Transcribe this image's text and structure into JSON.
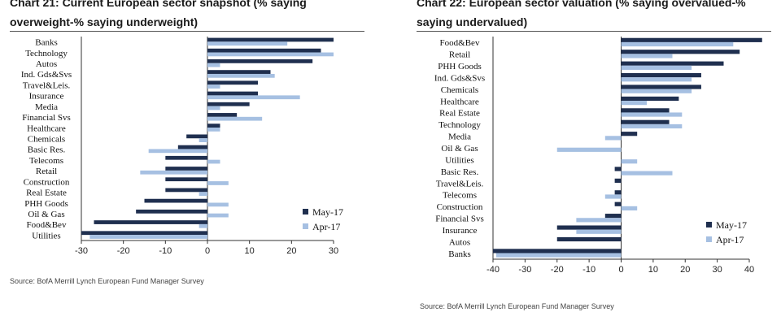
{
  "chart_data": [
    {
      "type": "bar",
      "orientation": "horizontal",
      "title": "Chart 21: Current European sector snapshot (% saying overweight-% saying underweight)",
      "source": "Source: BofA Merrill Lynch European Fund Manager Survey",
      "categories": [
        "Banks",
        "Technology",
        "Autos",
        "Ind. Gds&Svs",
        "Travel&Leis.",
        "Insurance",
        "Media",
        "Financial Svs",
        "Healthcare",
        "Chemicals",
        "Basic Res.",
        "Telecoms",
        "Retail",
        "Construction",
        "Real Estate",
        "PHH Goods",
        "Oil & Gas",
        "Food&Bev",
        "Utilities"
      ],
      "series": [
        {
          "name": "May-17",
          "color": "#1f2f4f",
          "values": [
            30,
            27,
            25,
            15,
            12,
            12,
            10,
            7,
            3,
            -5,
            -7,
            -10,
            -10,
            -10,
            -10,
            -15,
            -17,
            -27,
            -30
          ]
        },
        {
          "name": "Apr-17",
          "color": "#a6c0e2",
          "values": [
            19,
            30,
            3,
            16,
            3,
            22,
            3,
            13,
            3,
            -2,
            -14,
            3,
            -16,
            5,
            -2,
            5,
            5,
            -2,
            -28
          ]
        }
      ],
      "xlim": [
        -30,
        30
      ],
      "xticks": [
        -30,
        -20,
        -10,
        0,
        10,
        20,
        30
      ],
      "legend": "bottom-right"
    },
    {
      "type": "bar",
      "orientation": "horizontal",
      "title": "Chart 22: European sector valuation (% saying overvalued-% saying undervalued)",
      "source": "Source: BofA Merrill Lynch European Fund Manager Survey",
      "categories": [
        "Food&Bev",
        "Retail",
        "PHH Goods",
        "Ind. Gds&Svs",
        "Chemicals",
        "Healthcare",
        "Real Estate",
        "Technology",
        "Media",
        "Oil & Gas",
        "Utilities",
        "Basic Res.",
        "Travel&Leis.",
        "Telecoms",
        "Construction",
        "Financial Svs",
        "Insurance",
        "Autos",
        "Banks"
      ],
      "series": [
        {
          "name": "May-17",
          "color": "#1f2f4f",
          "values": [
            44,
            37,
            32,
            25,
            25,
            18,
            15,
            15,
            5,
            0,
            0,
            -2,
            -2,
            -2,
            -2,
            -5,
            -20,
            -20,
            -40
          ]
        },
        {
          "name": "Apr-17",
          "color": "#a6c0e2",
          "values": [
            35,
            16,
            22,
            22,
            22,
            8,
            19,
            19,
            -5,
            -20,
            5,
            16,
            0,
            -5,
            5,
            -14,
            -14,
            0,
            -39
          ]
        }
      ],
      "xlim": [
        -40,
        40
      ],
      "xticks": [
        -40,
        -30,
        -20,
        -10,
        0,
        10,
        20,
        30,
        40
      ],
      "legend": "bottom-right"
    }
  ]
}
